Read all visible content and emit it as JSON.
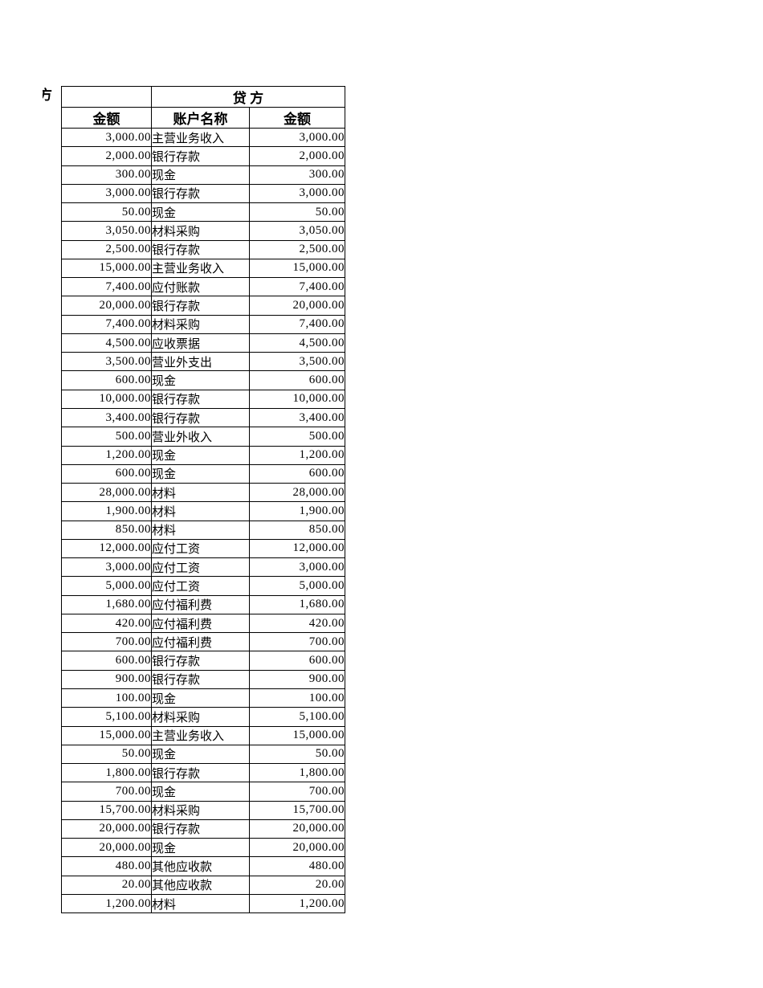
{
  "sheet": {
    "debit_header_partial": "方",
    "credit_header": "贷  方",
    "col_headers": {
      "debit_amount": "金额",
      "account_name": "账户名称",
      "credit_amount": "金额"
    },
    "rows": [
      [
        "3,000.00",
        "主营业务收入",
        "3,000.00"
      ],
      [
        "2,000.00",
        "银行存款",
        "2,000.00"
      ],
      [
        "300.00",
        "现金",
        "300.00"
      ],
      [
        "3,000.00",
        "银行存款",
        "3,000.00"
      ],
      [
        "50.00",
        "现金",
        "50.00"
      ],
      [
        "3,050.00",
        "材料采购",
        "3,050.00"
      ],
      [
        "2,500.00",
        "银行存款",
        "2,500.00"
      ],
      [
        "15,000.00",
        "主营业务收入",
        "15,000.00"
      ],
      [
        "7,400.00",
        "应付账款",
        "7,400.00"
      ],
      [
        "20,000.00",
        "银行存款",
        "20,000.00"
      ],
      [
        "7,400.00",
        "材料采购",
        "7,400.00"
      ],
      [
        "4,500.00",
        "应收票据",
        "4,500.00"
      ],
      [
        "3,500.00",
        "营业外支出",
        "3,500.00"
      ],
      [
        "600.00",
        "现金",
        "600.00"
      ],
      [
        "10,000.00",
        "银行存款",
        "10,000.00"
      ],
      [
        "3,400.00",
        "银行存款",
        "3,400.00"
      ],
      [
        "500.00",
        "营业外收入",
        "500.00"
      ],
      [
        "1,200.00",
        "现金",
        "1,200.00"
      ],
      [
        "600.00",
        "现金",
        "600.00"
      ],
      [
        "28,000.00",
        "材料",
        "28,000.00"
      ],
      [
        "1,900.00",
        "材料",
        "1,900.00"
      ],
      [
        "850.00",
        "材料",
        "850.00"
      ],
      [
        "12,000.00",
        "应付工资",
        "12,000.00"
      ],
      [
        "3,000.00",
        "应付工资",
        "3,000.00"
      ],
      [
        "5,000.00",
        "应付工资",
        "5,000.00"
      ],
      [
        "1,680.00",
        "应付福利费",
        "1,680.00"
      ],
      [
        "420.00",
        "应付福利费",
        "420.00"
      ],
      [
        "700.00",
        "应付福利费",
        "700.00"
      ],
      [
        "600.00",
        "银行存款",
        "600.00"
      ],
      [
        "900.00",
        "银行存款",
        "900.00"
      ],
      [
        "100.00",
        "现金",
        "100.00"
      ],
      [
        "5,100.00",
        "材料采购",
        "5,100.00"
      ],
      [
        "15,000.00",
        "主营业务收入",
        "15,000.00"
      ],
      [
        "50.00",
        "现金",
        "50.00"
      ],
      [
        "1,800.00",
        "银行存款",
        "1,800.00"
      ],
      [
        "700.00",
        "现金",
        "700.00"
      ],
      [
        "15,700.00",
        "材料采购",
        "15,700.00"
      ],
      [
        "20,000.00",
        "银行存款",
        "20,000.00"
      ],
      [
        "20,000.00",
        "现金",
        "20,000.00"
      ],
      [
        "480.00",
        "其他应收款",
        "480.00"
      ],
      [
        "20.00",
        "其他应收款",
        "20.00"
      ],
      [
        "1,200.00",
        "材料",
        "1,200.00"
      ]
    ]
  },
  "colors": {
    "background": "#ffffff",
    "border": "#000000",
    "text": "#000000"
  }
}
